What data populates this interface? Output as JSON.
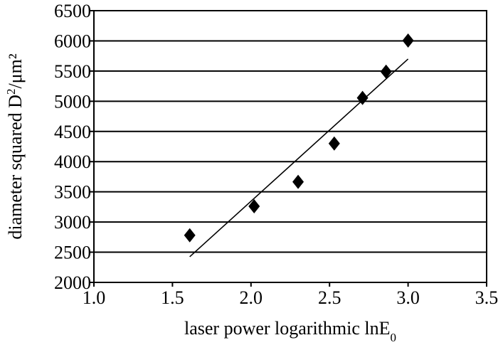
{
  "chart_data": {
    "type": "scatter",
    "xlabel": "laser power logarithmic lnE",
    "xlabel_sub": "0",
    "ylabel": "diameter squared D",
    "ylabel_sup": "2",
    "ylabel_unit": "/μm²",
    "xlim": [
      1.0,
      3.5
    ],
    "ylim": [
      2000,
      6500
    ],
    "x_ticks": [
      "1.0",
      "1.5",
      "2.0",
      "2.5",
      "3.0",
      "3.5"
    ],
    "y_ticks": [
      "2000",
      "2500",
      "3000",
      "3500",
      "4000",
      "4500",
      "5000",
      "5500",
      "6000",
      "6500"
    ],
    "grid": "horizontal",
    "marker": "diamond",
    "points": [
      {
        "x": 1.61,
        "y": 2780
      },
      {
        "x": 2.02,
        "y": 3260
      },
      {
        "x": 2.3,
        "y": 3665
      },
      {
        "x": 2.53,
        "y": 4300
      },
      {
        "x": 2.71,
        "y": 5055
      },
      {
        "x": 2.86,
        "y": 5490
      },
      {
        "x": 3.0,
        "y": 6005
      }
    ],
    "fit_line": {
      "x": [
        1.61,
        3.0
      ],
      "y": [
        2425,
        5700
      ]
    },
    "colors": {
      "marker": "#000000",
      "line": "#000000",
      "grid": "#000000"
    }
  }
}
